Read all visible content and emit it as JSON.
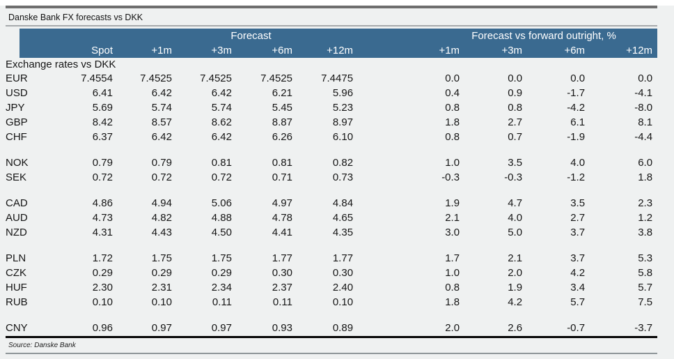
{
  "title": "Danske Bank FX forecasts vs DKK",
  "header": {
    "group1": "Forecast",
    "group2": "Forecast vs forward outright, %",
    "columns": [
      "Spot",
      "+1m",
      "+3m",
      "+6m",
      "+12m",
      "+1m",
      "+3m",
      "+6m",
      "+12m"
    ]
  },
  "section_label": "Exchange rates vs DKK",
  "row_groups": [
    {
      "rows": [
        {
          "currency": "EUR",
          "values": [
            "7.4554",
            "7.4525",
            "7.4525",
            "7.4525",
            "7.4475",
            "0.0",
            "0.0",
            "0.0",
            "0.0"
          ]
        },
        {
          "currency": "USD",
          "values": [
            "6.41",
            "6.42",
            "6.42",
            "6.21",
            "5.96",
            "0.4",
            "0.9",
            "-1.7",
            "-4.1"
          ]
        },
        {
          "currency": "JPY",
          "values": [
            "5.69",
            "5.74",
            "5.74",
            "5.45",
            "5.23",
            "0.8",
            "0.8",
            "-4.2",
            "-8.0"
          ]
        },
        {
          "currency": "GBP",
          "values": [
            "8.42",
            "8.57",
            "8.62",
            "8.87",
            "8.97",
            "1.8",
            "2.7",
            "6.1",
            "8.1"
          ]
        },
        {
          "currency": "CHF",
          "values": [
            "6.37",
            "6.42",
            "6.42",
            "6.26",
            "6.10",
            "0.8",
            "0.7",
            "-1.9",
            "-4.4"
          ]
        }
      ]
    },
    {
      "rows": [
        {
          "currency": "NOK",
          "values": [
            "0.79",
            "0.79",
            "0.81",
            "0.81",
            "0.82",
            "1.0",
            "3.5",
            "4.0",
            "6.0"
          ]
        },
        {
          "currency": "SEK",
          "values": [
            "0.72",
            "0.72",
            "0.72",
            "0.71",
            "0.73",
            "-0.3",
            "-0.3",
            "-1.2",
            "1.8"
          ]
        }
      ]
    },
    {
      "rows": [
        {
          "currency": "CAD",
          "values": [
            "4.86",
            "4.94",
            "5.06",
            "4.97",
            "4.84",
            "1.9",
            "4.7",
            "3.5",
            "2.3"
          ]
        },
        {
          "currency": "AUD",
          "values": [
            "4.73",
            "4.82",
            "4.88",
            "4.78",
            "4.65",
            "2.1",
            "4.0",
            "2.7",
            "1.2"
          ]
        },
        {
          "currency": "NZD",
          "values": [
            "4.31",
            "4.43",
            "4.50",
            "4.41",
            "4.35",
            "3.0",
            "5.0",
            "3.7",
            "3.8"
          ]
        }
      ]
    },
    {
      "rows": [
        {
          "currency": "PLN",
          "values": [
            "1.72",
            "1.75",
            "1.75",
            "1.77",
            "1.77",
            "1.7",
            "2.1",
            "3.7",
            "5.3"
          ]
        },
        {
          "currency": "CZK",
          "values": [
            "0.29",
            "0.29",
            "0.29",
            "0.30",
            "0.30",
            "1.0",
            "2.0",
            "4.2",
            "5.8"
          ]
        },
        {
          "currency": "HUF",
          "values": [
            "2.30",
            "2.31",
            "2.34",
            "2.37",
            "2.40",
            "0.8",
            "1.9",
            "3.4",
            "5.7"
          ]
        },
        {
          "currency": "RUB",
          "values": [
            "0.10",
            "0.10",
            "0.11",
            "0.11",
            "0.10",
            "1.8",
            "4.2",
            "5.7",
            "7.5"
          ]
        }
      ]
    },
    {
      "rows": [
        {
          "currency": "CNY",
          "values": [
            "0.96",
            "0.97",
            "0.97",
            "0.93",
            "0.89",
            "2.0",
            "2.6",
            "-0.7",
            "-3.7"
          ]
        }
      ]
    }
  ],
  "source": "Source: Danske Bank",
  "colors": {
    "header_bg": "#3a6a90",
    "page_bg": "#eff1f1",
    "top_bar": "#6e6e6e",
    "text": "#151515"
  }
}
